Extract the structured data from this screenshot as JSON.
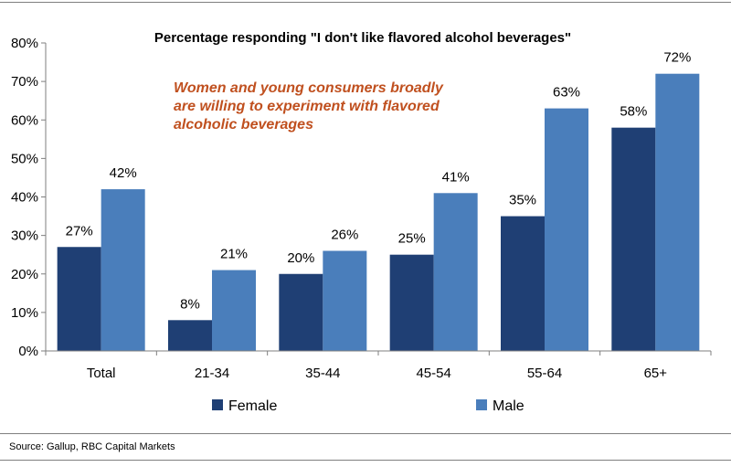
{
  "chart_data": {
    "type": "bar",
    "title": "Percentage responding \"I don't like flavored alcohol beverages\"",
    "annotation": [
      "Women and young consumers broadly",
      "are willing to experiment with flavored",
      "alcoholic beverages"
    ],
    "categories": [
      "Total",
      "21-34",
      "35-44",
      "45-54",
      "55-64",
      "65+"
    ],
    "series": [
      {
        "name": "Female",
        "values": [
          27,
          8,
          20,
          25,
          35,
          58
        ],
        "color": "#1f3f74"
      },
      {
        "name": "Male",
        "values": [
          42,
          21,
          26,
          41,
          63,
          72
        ],
        "color": "#4a7ebb"
      }
    ],
    "ylim": [
      0,
      80
    ],
    "yticks": [
      0,
      10,
      20,
      30,
      40,
      50,
      60,
      70,
      80
    ],
    "ytick_labels": [
      "0%",
      "10%",
      "20%",
      "30%",
      "40%",
      "50%",
      "60%",
      "70%",
      "80%"
    ],
    "data_labels": [
      [
        "27%",
        "8%",
        "20%",
        "25%",
        "35%",
        "58%"
      ],
      [
        "42%",
        "21%",
        "26%",
        "41%",
        "63%",
        "72%"
      ]
    ],
    "xlabel": "",
    "ylabel": "",
    "grid": false,
    "legend": "bottom"
  },
  "source": "Source: Gallup, RBC Capital Markets"
}
